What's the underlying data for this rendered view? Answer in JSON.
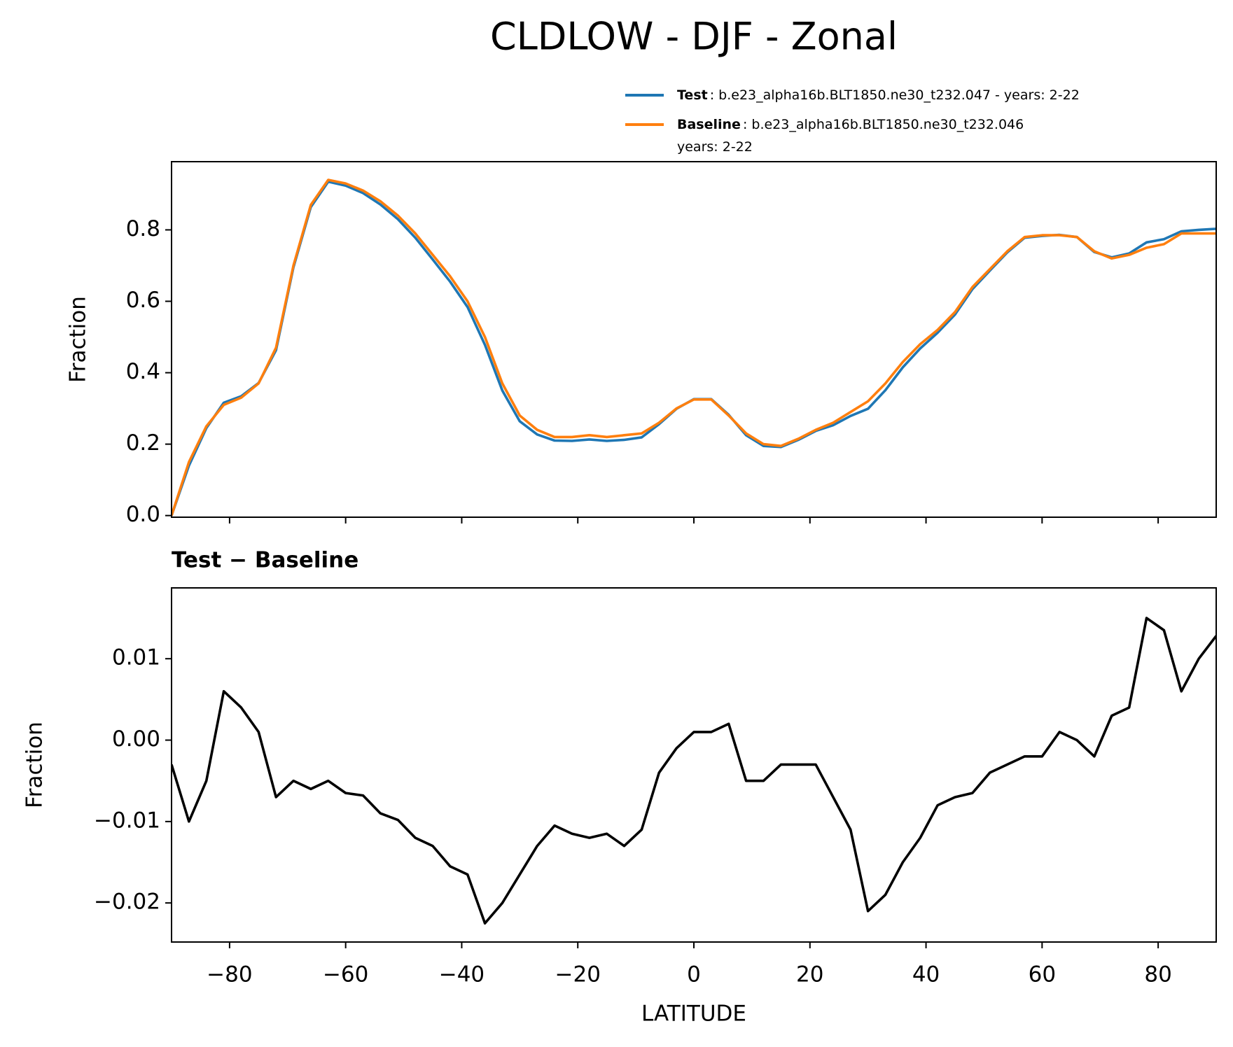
{
  "chart_data": [
    {
      "type": "line",
      "title": "CLDLOW - DJF - Zonal",
      "ylabel": "Fraction",
      "x": [
        -90,
        -87,
        -84,
        -81,
        -78,
        -75,
        -72,
        -69,
        -66,
        -63,
        -60,
        -57,
        -54,
        -51,
        -48,
        -45,
        -42,
        -39,
        -36,
        -33,
        -30,
        -27,
        -24,
        -21,
        -18,
        -15,
        -12,
        -9,
        -6,
        -3,
        0,
        3,
        6,
        9,
        12,
        15,
        18,
        21,
        24,
        27,
        30,
        33,
        36,
        39,
        42,
        45,
        48,
        51,
        54,
        57,
        60,
        63,
        66,
        69,
        72,
        75,
        78,
        81,
        84,
        87,
        90
      ],
      "series": [
        {
          "name": "Test",
          "description_lines": [
            ": b.e23_alpha16b.BLT1850.ne30_t232.047 - years: 2-22"
          ],
          "color": "#1f77b4",
          "values": [
            0.0,
            0.14,
            0.245,
            0.316,
            0.334,
            0.371,
            0.463,
            0.695,
            0.864,
            0.935,
            0.924,
            0.903,
            0.871,
            0.83,
            0.778,
            0.717,
            0.655,
            0.584,
            0.478,
            0.35,
            0.264,
            0.227,
            0.21,
            0.209,
            0.213,
            0.209,
            0.212,
            0.219,
            0.256,
            0.299,
            0.326,
            0.326,
            0.282,
            0.225,
            0.195,
            0.192,
            0.212,
            0.237,
            0.253,
            0.279,
            0.299,
            0.351,
            0.415,
            0.468,
            0.512,
            0.563,
            0.634,
            0.686,
            0.737,
            0.778,
            0.783,
            0.786,
            0.78,
            0.738,
            0.723,
            0.734,
            0.765,
            0.774,
            0.796,
            0.8,
            0.803
          ]
        },
        {
          "name": "Baseline",
          "description_lines": [
            ": b.e23_alpha16b.BLT1850.ne30_t232.046",
            "years: 2-22"
          ],
          "color": "#ff7f0e",
          "values": [
            0.0,
            0.15,
            0.25,
            0.31,
            0.33,
            0.37,
            0.47,
            0.7,
            0.87,
            0.94,
            0.93,
            0.91,
            0.88,
            0.84,
            0.79,
            0.73,
            0.67,
            0.6,
            0.5,
            0.37,
            0.28,
            0.24,
            0.22,
            0.22,
            0.225,
            0.22,
            0.225,
            0.23,
            0.26,
            0.3,
            0.325,
            0.325,
            0.28,
            0.23,
            0.2,
            0.195,
            0.215,
            0.24,
            0.26,
            0.29,
            0.32,
            0.37,
            0.43,
            0.48,
            0.52,
            0.57,
            0.64,
            0.69,
            0.74,
            0.78,
            0.785,
            0.785,
            0.78,
            0.74,
            0.72,
            0.73,
            0.75,
            0.76,
            0.79,
            0.79,
            0.79
          ]
        }
      ],
      "xlim": [
        -90,
        90
      ],
      "xticks": [
        -80,
        -60,
        -40,
        -20,
        0,
        20,
        40,
        60,
        80
      ],
      "ylim": [
        -0.0046,
        0.991
      ],
      "yticks": [
        {
          "value": 0,
          "label": "0.0"
        },
        0.2,
        0.4,
        0.6,
        0.8
      ]
    },
    {
      "type": "line",
      "title": "Test − Baseline",
      "xlabel": "LATITUDE",
      "ylabel": "Fraction",
      "x": [
        -90,
        -87,
        -84,
        -81,
        -78,
        -75,
        -72,
        -69,
        -66,
        -63,
        -60,
        -57,
        -54,
        -51,
        -48,
        -45,
        -42,
        -39,
        -36,
        -33,
        -30,
        -27,
        -24,
        -21,
        -18,
        -15,
        -12,
        -9,
        -6,
        -3,
        0,
        3,
        6,
        9,
        12,
        15,
        18,
        21,
        24,
        27,
        30,
        33,
        36,
        39,
        42,
        45,
        48,
        51,
        54,
        57,
        60,
        63,
        66,
        69,
        72,
        75,
        78,
        81,
        84,
        87,
        90
      ],
      "series": [
        {
          "color": "#000000",
          "values": [
            -0.003,
            -0.01,
            -0.005,
            0.006,
            0.004,
            0.001,
            -0.007,
            -0.005,
            -0.006,
            -0.005,
            -0.0065,
            -0.0068,
            -0.009,
            -0.0098,
            -0.012,
            -0.013,
            -0.0155,
            -0.0165,
            -0.0225,
            -0.02,
            -0.0165,
            -0.013,
            -0.0105,
            -0.0115,
            -0.012,
            -0.0115,
            -0.013,
            -0.011,
            -0.004,
            -0.001,
            0.001,
            0.001,
            0.002,
            -0.005,
            -0.005,
            -0.003,
            -0.003,
            -0.003,
            -0.007,
            -0.011,
            -0.021,
            -0.019,
            -0.015,
            -0.012,
            -0.008,
            -0.007,
            -0.0065,
            -0.004,
            -0.003,
            -0.002,
            -0.002,
            0.001,
            0.0,
            -0.002,
            0.003,
            0.004,
            0.015,
            0.0135,
            0.006,
            0.01,
            0.0128
          ]
        }
      ],
      "xlim": [
        -90,
        90
      ],
      "xticks": [
        {
          "value": -80,
          "label": "−80"
        },
        {
          "value": -60,
          "label": "−60"
        },
        {
          "value": -40,
          "label": "−40"
        },
        {
          "value": -20,
          "label": "−20"
        },
        0,
        20,
        40,
        60,
        80
      ],
      "ylim": [
        -0.0248,
        0.0187
      ],
      "yticks": [
        {
          "value": -0.02,
          "label": "−0.02"
        },
        {
          "value": -0.01,
          "label": "−0.01"
        },
        {
          "value": 0,
          "label": "0.00"
        },
        0.01
      ]
    }
  ]
}
